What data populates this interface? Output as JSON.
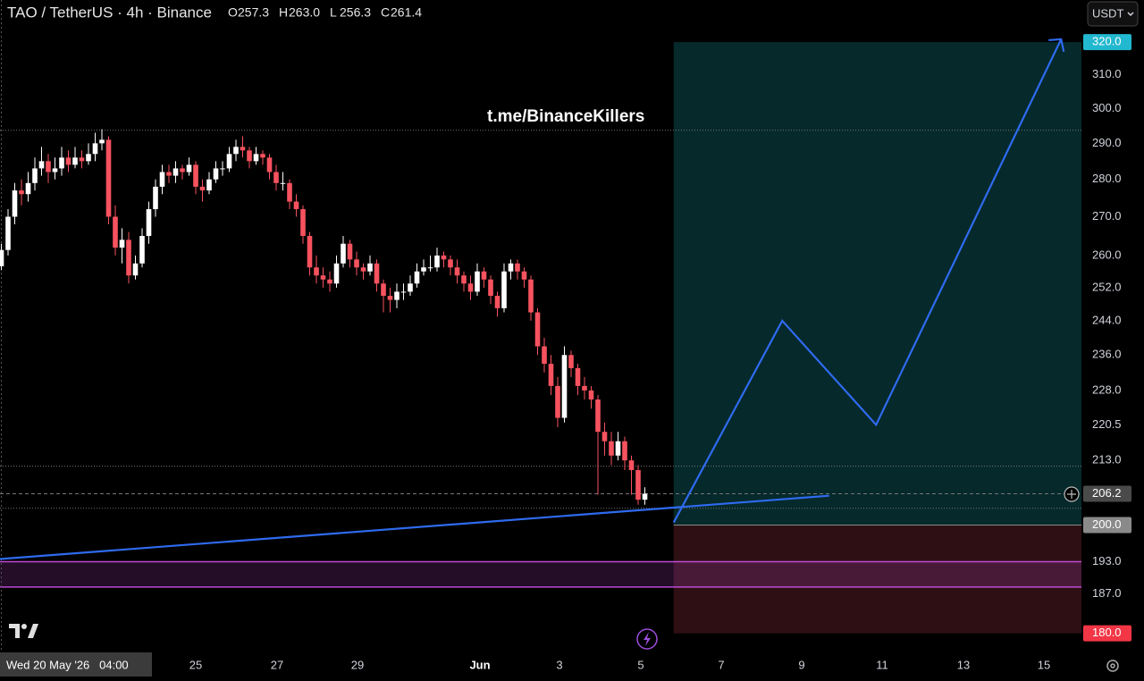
{
  "chart_data": {
    "type": "candlestick",
    "title": "TAO / TetherUS · 4h · Binance",
    "ohlc_keys": [
      "O",
      "H",
      "L",
      "C"
    ],
    "ohlc_labels": [
      "257.3",
      "263.0",
      "256.3",
      "261.4"
    ],
    "watermark": "t.me/BinanceKillers",
    "currency_button": "USDT",
    "crosshair_label": "Wed 20 May '26   04:00",
    "xtick_labels": [
      "25",
      "27",
      "29",
      "Jun",
      "3",
      "5",
      "7",
      "9",
      "11",
      "13",
      "15"
    ],
    "log_scale": true,
    "ylim": [
      177,
      333.4
    ],
    "yticks": [
      {
        "value": 310,
        "label": "310.0"
      },
      {
        "value": 300,
        "label": "300.0"
      },
      {
        "value": 290,
        "label": "290.0"
      },
      {
        "value": 280,
        "label": "280.0"
      },
      {
        "value": 270,
        "label": "270.0"
      },
      {
        "value": 260,
        "label": "260.0"
      },
      {
        "value": 252,
        "label": "252.0"
      },
      {
        "value": 244,
        "label": "244.0"
      },
      {
        "value": 236,
        "label": "236.0"
      },
      {
        "value": 228,
        "label": "228.0"
      },
      {
        "value": 220.5,
        "label": "220.5"
      },
      {
        "value": 213,
        "label": "213.0"
      },
      {
        "value": 193,
        "label": "193.0"
      },
      {
        "value": 187,
        "label": "187.0"
      }
    ],
    "price_badges": [
      {
        "value": 320,
        "label": "320.0",
        "color": "#22b8cf"
      },
      {
        "value": 206.2,
        "label": "206.2",
        "color": "#4a4a4a"
      },
      {
        "value": 200,
        "label": "200.0",
        "color": "#8a8a8a"
      },
      {
        "value": 180,
        "label": "180.0",
        "color": "#f23645"
      }
    ],
    "up_color": "#ffffff",
    "down_color": "#f7525f",
    "hlines": [
      293.7,
      211.8,
      203.3
    ],
    "current_price": 206.2,
    "position": {
      "start": 100.3,
      "entry": 200,
      "target": 320,
      "stop": 180
    },
    "zone": {
      "top": 193,
      "bottom": 188.3,
      "color": "#c04ad8"
    },
    "trendline": [
      [
        -0.2,
        193.5
      ],
      [
        123.5,
        205.8
      ]
    ],
    "projection": [
      [
        100.3,
        200.5
      ],
      [
        116.5,
        244
      ],
      [
        130.5,
        220.5
      ],
      [
        158.1,
        320.9
      ]
    ],
    "drawing_color": "#2f6bf0",
    "candles": [
      [
        257.3,
        263,
        256.3,
        261.4
      ],
      [
        261.4,
        272,
        260,
        270
      ],
      [
        270,
        279,
        268,
        277
      ],
      [
        277,
        280,
        273,
        276
      ],
      [
        276,
        282,
        274,
        279
      ],
      [
        279,
        286,
        277,
        283
      ],
      [
        283,
        289,
        281,
        285
      ],
      [
        285,
        287,
        279,
        282
      ],
      [
        282,
        286,
        280,
        283
      ],
      [
        283,
        289,
        281,
        286
      ],
      [
        286,
        288,
        282,
        284
      ],
      [
        284,
        289,
        283,
        286
      ],
      [
        286,
        288,
        283,
        285
      ],
      [
        285,
        290,
        284,
        287
      ],
      [
        287,
        293,
        285,
        290
      ],
      [
        290,
        294,
        288,
        291
      ],
      [
        291,
        292,
        268,
        270
      ],
      [
        270,
        273,
        260,
        262
      ],
      [
        262,
        267,
        258,
        264
      ],
      [
        264,
        266,
        253,
        255
      ],
      [
        255,
        260,
        254,
        258
      ],
      [
        258,
        267,
        257,
        265
      ],
      [
        265,
        274,
        263,
        272
      ],
      [
        272,
        280,
        270,
        278
      ],
      [
        278,
        284,
        276,
        282
      ],
      [
        282,
        284,
        279,
        281
      ],
      [
        281,
        285,
        279,
        283
      ],
      [
        283,
        284,
        280,
        282
      ],
      [
        282,
        286,
        281,
        284
      ],
      [
        284,
        285,
        276,
        278
      ],
      [
        278,
        280,
        274,
        277
      ],
      [
        277,
        282,
        276,
        280
      ],
      [
        280,
        285,
        279,
        283
      ],
      [
        283,
        285,
        281,
        283
      ],
      [
        283,
        289,
        282,
        287
      ],
      [
        287,
        291,
        285,
        289
      ],
      [
        289,
        292,
        286,
        288
      ],
      [
        288,
        289,
        283,
        285
      ],
      [
        285,
        289,
        284,
        287
      ],
      [
        287,
        288,
        284,
        286
      ],
      [
        286,
        287,
        280,
        282
      ],
      [
        282,
        284,
        277,
        279
      ],
      [
        279,
        282,
        277,
        279
      ],
      [
        279,
        280,
        272,
        274
      ],
      [
        274,
        276,
        270,
        272
      ],
      [
        272,
        273,
        263,
        265
      ],
      [
        265,
        266,
        255,
        257
      ],
      [
        257,
        260,
        253,
        255
      ],
      [
        255,
        257,
        252,
        254
      ],
      [
        254,
        256,
        251,
        253
      ],
      [
        253,
        260,
        252,
        258
      ],
      [
        258,
        265,
        257,
        263
      ],
      [
        263,
        264,
        257,
        259
      ],
      [
        259,
        261,
        255,
        257
      ],
      [
        257,
        258,
        254,
        256
      ],
      [
        256,
        260,
        255,
        258
      ],
      [
        258,
        259,
        251,
        253
      ],
      [
        253,
        254,
        246,
        250
      ],
      [
        250,
        252,
        246,
        249
      ],
      [
        249,
        253,
        247,
        251
      ],
      [
        251,
        253,
        249,
        251
      ],
      [
        251,
        255,
        250,
        253
      ],
      [
        253,
        258,
        252,
        256
      ],
      [
        256,
        259,
        255,
        257
      ],
      [
        257,
        260,
        256,
        257
      ],
      [
        257,
        262,
        256,
        260
      ],
      [
        260,
        261,
        257,
        259
      ],
      [
        259,
        260,
        255,
        257
      ],
      [
        257,
        259,
        253,
        255
      ],
      [
        255,
        256,
        251,
        253
      ],
      [
        253,
        255,
        249,
        251
      ],
      [
        251,
        258,
        250,
        256
      ],
      [
        256,
        257,
        252,
        254
      ],
      [
        254,
        255,
        248,
        250
      ],
      [
        250,
        251,
        245,
        247
      ],
      [
        247,
        258,
        246,
        256
      ],
      [
        256,
        259,
        254,
        258
      ],
      [
        258,
        259,
        254,
        256
      ],
      [
        256,
        257,
        252,
        254
      ],
      [
        254,
        255,
        244,
        246
      ],
      [
        246,
        247,
        236,
        238
      ],
      [
        238,
        240,
        232,
        234
      ],
      [
        234,
        236,
        227,
        229
      ],
      [
        229,
        231,
        220,
        222
      ],
      [
        222,
        238,
        221,
        236
      ],
      [
        236,
        237,
        231,
        233
      ],
      [
        233,
        234,
        227,
        229
      ],
      [
        229,
        231,
        226,
        228
      ],
      [
        228,
        229,
        224,
        226
      ],
      [
        226,
        227,
        206,
        219
      ],
      [
        219,
        221,
        214,
        217
      ],
      [
        217,
        219,
        212,
        214
      ],
      [
        214,
        219,
        213,
        217
      ],
      [
        217,
        218,
        211,
        213
      ],
      [
        213,
        214,
        206,
        211
      ],
      [
        211,
        212,
        204,
        205
      ],
      [
        205,
        207.5,
        204,
        206.2
      ]
    ]
  }
}
